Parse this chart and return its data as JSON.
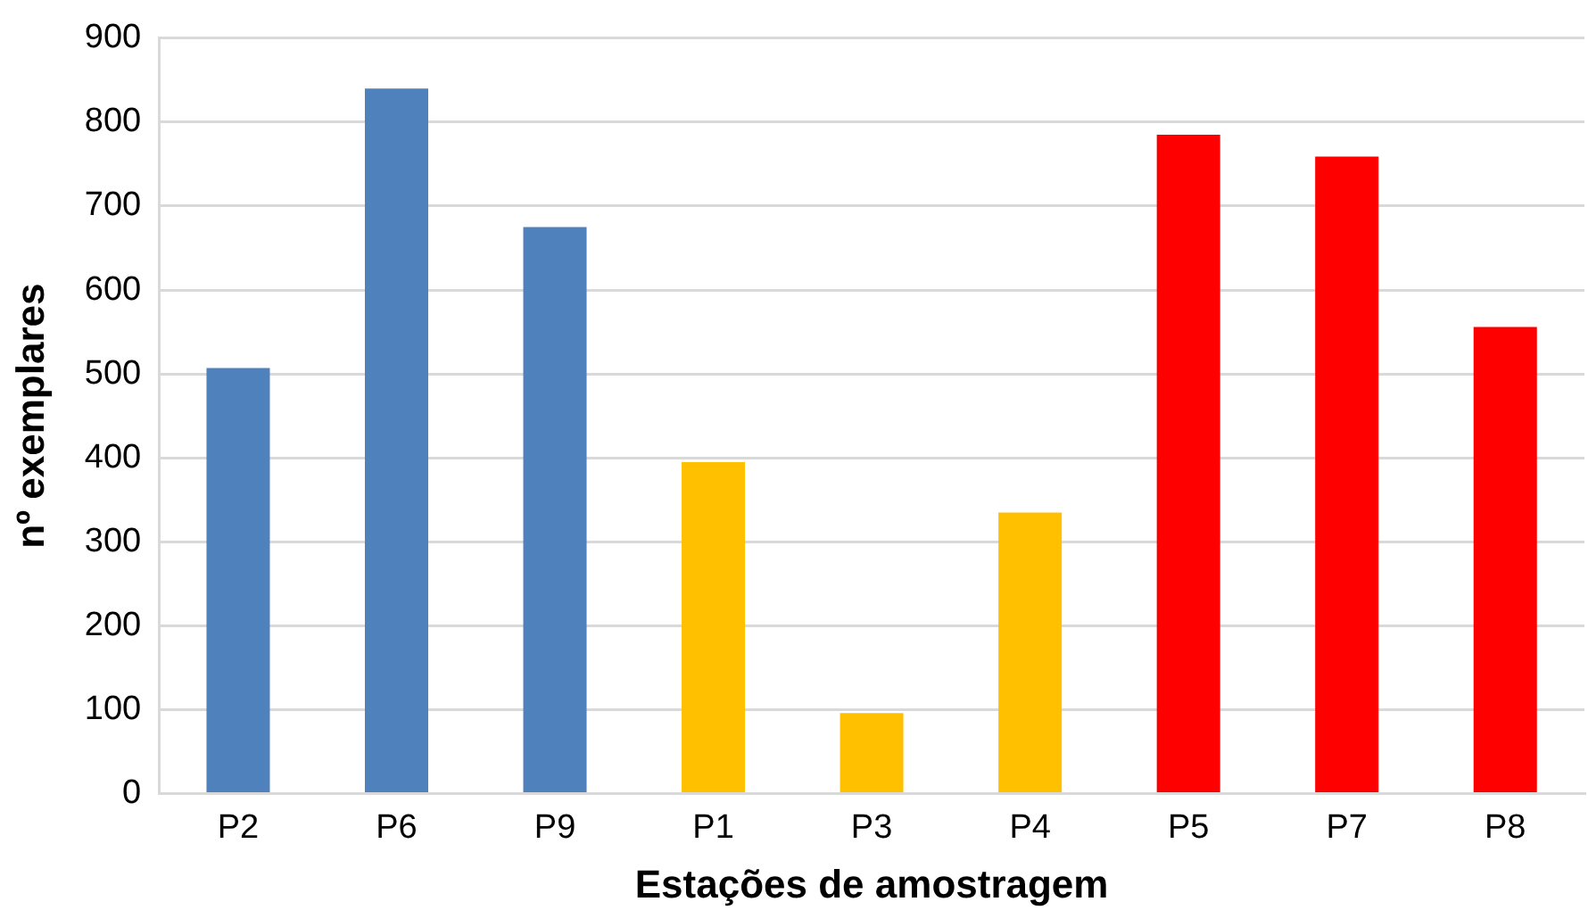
{
  "chart_data": {
    "type": "bar",
    "xlabel": "Estações de amostragem",
    "ylabel": "nº exemplares",
    "categories": [
      "P2",
      "P6",
      "P9",
      "P1",
      "P3",
      "P4",
      "P5",
      "P7",
      "P8"
    ],
    "values": [
      507,
      840,
      675,
      395,
      96,
      335,
      785,
      759,
      556
    ],
    "colors": [
      "#4f81bd",
      "#4f81bd",
      "#4f81bd",
      "#ffc000",
      "#ffc000",
      "#ffc000",
      "#ff0000",
      "#ff0000",
      "#ff0000"
    ],
    "ylim": [
      0,
      900
    ],
    "yticks": [
      0,
      100,
      200,
      300,
      400,
      500,
      600,
      700,
      800,
      900
    ],
    "grid": "y",
    "legend": false
  }
}
